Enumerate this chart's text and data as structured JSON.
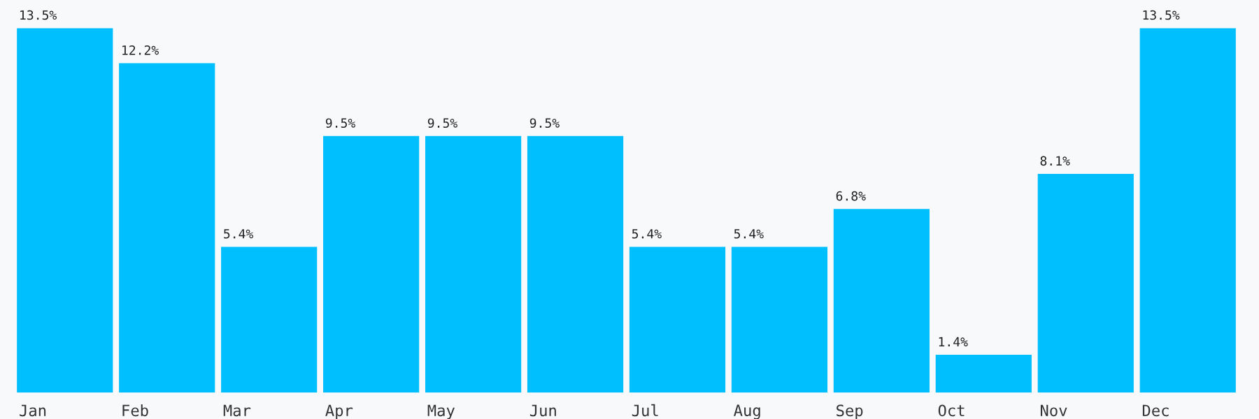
{
  "chart_data": {
    "type": "bar",
    "categories": [
      "Jan",
      "Feb",
      "Mar",
      "Apr",
      "May",
      "Jun",
      "Jul",
      "Aug",
      "Sep",
      "Oct",
      "Nov",
      "Dec"
    ],
    "values": [
      13.5,
      12.2,
      5.4,
      9.5,
      9.5,
      9.5,
      5.4,
      5.4,
      6.8,
      1.4,
      8.1,
      13.5
    ],
    "value_labels": [
      "13.5%",
      "12.2%",
      "5.4%",
      "9.5%",
      "9.5%",
      "9.5%",
      "5.4%",
      "5.4%",
      "6.8%",
      "1.4%",
      "8.1%",
      "13.5%"
    ],
    "color": "#00bfff"
  }
}
